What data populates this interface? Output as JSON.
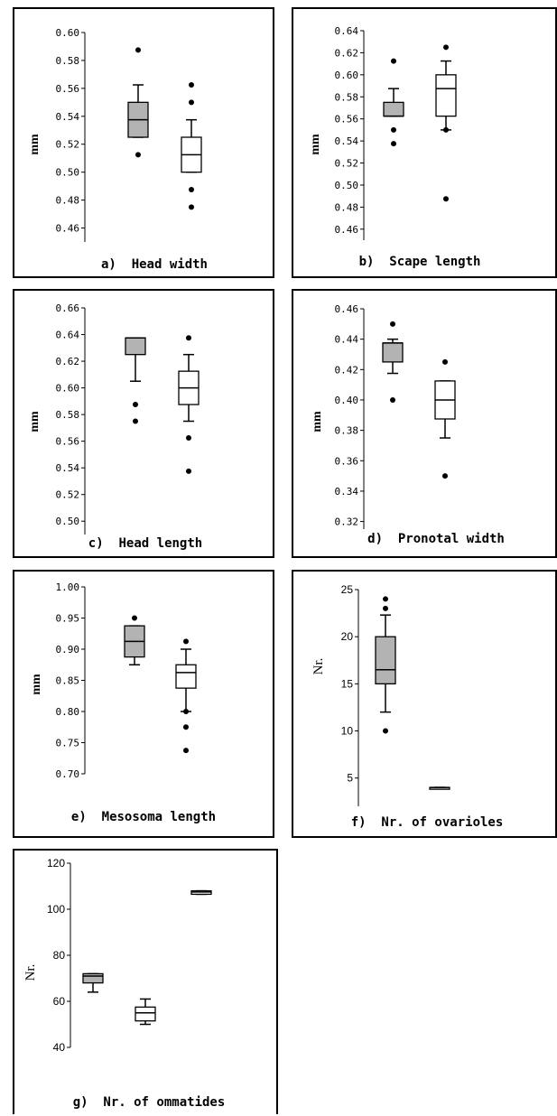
{
  "chart_data": [
    {
      "type": "box",
      "title": "a)  Head width",
      "ylabel": "mm",
      "ylim": [
        0.45,
        0.6
      ],
      "yticks": [
        "0.60",
        "0.58",
        "0.56",
        "0.54",
        "0.52",
        "0.50",
        "0.48",
        "0.46"
      ],
      "boxes": [
        {
          "fill": "#b3b3b3",
          "whisker_low": 0.525,
          "q1": 0.525,
          "median": 0.5375,
          "q3": 0.55,
          "whisker_high": 0.5625,
          "outliers": [
            0.5875,
            0.5125
          ]
        },
        {
          "fill": "#ffffff",
          "whisker_low": 0.5,
          "q1": 0.5,
          "median": 0.5125,
          "q3": 0.525,
          "whisker_high": 0.5375,
          "outliers": [
            0.5625,
            0.55,
            0.4875,
            0.475
          ]
        }
      ]
    },
    {
      "type": "box",
      "title": "b)  Scape length",
      "ylabel": "mm",
      "ylim": [
        0.45,
        0.64
      ],
      "yticks": [
        "0.64",
        "0.62",
        "0.60",
        "0.58",
        "0.56",
        "0.54",
        "0.52",
        "0.50",
        "0.48",
        "0.46"
      ],
      "boxes": [
        {
          "fill": "#b3b3b3",
          "whisker_low": 0.5625,
          "q1": 0.5625,
          "median": 0.5625,
          "q3": 0.575,
          "whisker_high": 0.5875,
          "outliers": [
            0.6125,
            0.55,
            0.5375
          ]
        },
        {
          "fill": "#ffffff",
          "whisker_low": 0.55,
          "q1": 0.5625,
          "median": 0.5875,
          "q3": 0.6,
          "whisker_high": 0.6125,
          "outliers": [
            0.625,
            0.55,
            0.4875
          ]
        }
      ]
    },
    {
      "type": "box",
      "title": "c)  Head length",
      "ylabel": "mm",
      "ylim": [
        0.49,
        0.66
      ],
      "yticks": [
        "0.66",
        "0.64",
        "0.62",
        "0.60",
        "0.58",
        "0.56",
        "0.54",
        "0.52",
        "0.50"
      ],
      "boxes": [
        {
          "fill": "#b3b3b3",
          "whisker_low": 0.605,
          "q1": 0.625,
          "median": 0.6375,
          "q3": 0.6375,
          "whisker_high": 0.6375,
          "outliers": [
            0.5875,
            0.575
          ]
        },
        {
          "fill": "#ffffff",
          "whisker_low": 0.575,
          "q1": 0.5875,
          "median": 0.6,
          "q3": 0.6125,
          "whisker_high": 0.625,
          "outliers": [
            0.6375,
            0.5625,
            0.5375
          ]
        }
      ]
    },
    {
      "type": "box",
      "title": "d)  Pronotal width",
      "ylabel": "mm",
      "ylim": [
        0.315,
        0.46
      ],
      "yticks": [
        "0.46",
        "0.44",
        "0.42",
        "0.40",
        "0.38",
        "0.36",
        "0.34",
        "0.32"
      ],
      "boxes": [
        {
          "fill": "#b3b3b3",
          "whisker_low": 0.4175,
          "q1": 0.425,
          "median": 0.4375,
          "q3": 0.4375,
          "whisker_high": 0.44,
          "outliers": [
            0.45,
            0.4
          ]
        },
        {
          "fill": "#ffffff",
          "whisker_low": 0.375,
          "q1": 0.3875,
          "median": 0.4,
          "q3": 0.4125,
          "whisker_high": 0.4125,
          "outliers": [
            0.425,
            0.35
          ]
        }
      ]
    },
    {
      "type": "box",
      "title": "e)  Mesosoma length",
      "ylabel": "mm",
      "ylim": [
        0.7,
        1.0
      ],
      "yticks": [
        "1.00",
        "0.95",
        "0.90",
        "0.85",
        "0.80",
        "0.75",
        "0.70"
      ],
      "boxes": [
        {
          "fill": "#b3b3b3",
          "whisker_low": 0.875,
          "q1": 0.8875,
          "median": 0.9125,
          "q3": 0.9375,
          "whisker_high": 0.9375,
          "outliers": [
            0.95
          ]
        },
        {
          "fill": "#ffffff",
          "whisker_low": 0.8,
          "q1": 0.8375,
          "median": 0.8625,
          "q3": 0.875,
          "whisker_high": 0.9,
          "outliers": [
            0.9125,
            0.8,
            0.775,
            0.7375
          ]
        }
      ]
    },
    {
      "type": "box",
      "title": "f)  Nr. of ovarioles",
      "ylabel": "Nr.",
      "ylim": [
        2,
        25
      ],
      "yticks": [
        "25",
        "20",
        "15",
        "10",
        "5"
      ],
      "boxes": [
        {
          "fill": "#b3b3b3",
          "whisker_low": 12,
          "q1": 15,
          "median": 16.5,
          "q3": 20,
          "whisker_high": 22.3,
          "outliers": [
            24,
            23,
            10
          ]
        },
        {
          "fill": "#ffffff",
          "whisker_low": 4,
          "q1": 4,
          "median": 4,
          "q3": 4,
          "whisker_high": 4,
          "outliers": []
        }
      ]
    },
    {
      "type": "box",
      "title": "g)  Nr. of ommatides",
      "ylabel": "Nr.",
      "ylim": [
        40,
        120
      ],
      "yticks": [
        "120",
        "100",
        "80",
        "60",
        "40"
      ],
      "boxes": [
        {
          "fill": "#b3b3b3",
          "whisker_low": 64,
          "q1": 68,
          "median": 71,
          "q3": 72,
          "whisker_high": 72,
          "outliers": []
        },
        {
          "fill": "#ffffff",
          "whisker_low": 50,
          "q1": 51.5,
          "median": 55,
          "q3": 57.5,
          "whisker_high": 61,
          "outliers": []
        },
        {
          "fill": "#ffffff",
          "whisker_low": 106.5,
          "q1": 106.5,
          "median": 107.5,
          "q3": 108,
          "whisker_high": 108,
          "outliers": []
        }
      ]
    }
  ]
}
